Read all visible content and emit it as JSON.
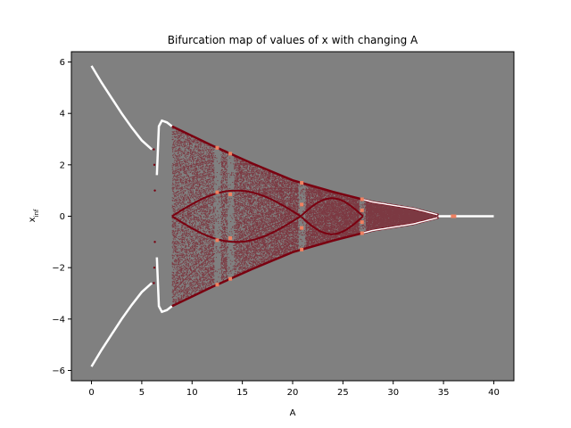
{
  "chart_data": {
    "type": "scatter",
    "title": "Bifurcation map of values of x with changing A",
    "xlabel": "A",
    "ylabel_main": "x",
    "ylabel_sub": "inf",
    "xlim": [
      -2,
      42
    ],
    "ylim": [
      -6.4,
      6.4
    ],
    "x_ticks": [
      0,
      5,
      10,
      15,
      20,
      25,
      30,
      35,
      40
    ],
    "y_ticks": [
      -6,
      -4,
      -2,
      0,
      2,
      4,
      6
    ],
    "grid": false,
    "background_color": "#808080",
    "colors": {
      "fixed_point": "#ffffff",
      "period_window": "#f08060",
      "chaotic": "#7a0010"
    },
    "branches": {
      "fixed_upper": [
        [
          0,
          5.85
        ],
        [
          1,
          5.2
        ],
        [
          2,
          4.6
        ],
        [
          3,
          4.0
        ],
        [
          4,
          3.45
        ],
        [
          5,
          2.95
        ],
        [
          6,
          2.6
        ]
      ],
      "fixed_lower": [
        [
          0,
          -5.85
        ],
        [
          1,
          -5.2
        ],
        [
          2,
          -4.6
        ],
        [
          3,
          -4.0
        ],
        [
          4,
          -3.45
        ],
        [
          5,
          -2.95
        ],
        [
          6,
          -2.6
        ]
      ],
      "period2_upper": [
        [
          6.5,
          1.6
        ],
        [
          6.7,
          3.5
        ],
        [
          7,
          3.72
        ],
        [
          7.5,
          3.65
        ],
        [
          8,
          3.5
        ]
      ],
      "period2_lower": [
        [
          6.5,
          -1.6
        ],
        [
          6.7,
          -3.5
        ],
        [
          7,
          -3.72
        ],
        [
          7.5,
          -3.65
        ],
        [
          8,
          -3.5
        ]
      ],
      "envelope_upper": [
        [
          8,
          3.5
        ],
        [
          12,
          2.75
        ],
        [
          16,
          2.05
        ],
        [
          20,
          1.4
        ],
        [
          24,
          0.95
        ],
        [
          28,
          0.55
        ],
        [
          32,
          0.3
        ],
        [
          34.5,
          0.05
        ]
      ],
      "envelope_lower": [
        [
          8,
          -3.5
        ],
        [
          12,
          -2.75
        ],
        [
          16,
          -2.05
        ],
        [
          20,
          -1.4
        ],
        [
          24,
          -0.95
        ],
        [
          28,
          -0.55
        ],
        [
          32,
          -0.3
        ],
        [
          34.5,
          -0.05
        ]
      ],
      "tail_zero": [
        [
          34.5,
          0
        ],
        [
          40,
          0
        ]
      ],
      "windows": [
        12.5,
        13.8,
        20.9,
        26.9
      ]
    }
  }
}
